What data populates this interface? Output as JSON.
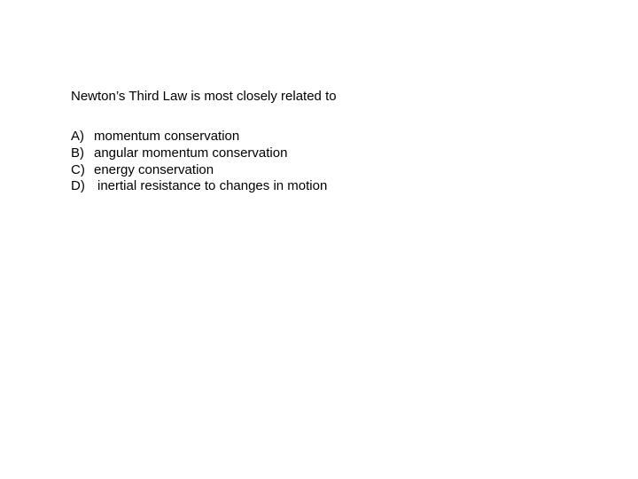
{
  "question": "Newton’s Third Law is most closely related to",
  "options": [
    {
      "letter": "A)",
      "text": "momentum conservation",
      "extra_pad": false
    },
    {
      "letter": "B)",
      "text": "angular momentum conservation",
      "extra_pad": false
    },
    {
      "letter": "C)",
      "text": "energy conservation",
      "extra_pad": false
    },
    {
      "letter": "D)",
      "text": "inertial resistance to changes in motion",
      "extra_pad": true
    }
  ],
  "colors": {
    "background": "#ffffff",
    "text": "#000000"
  },
  "typography": {
    "font_family": "Arial",
    "font_size_pt": 11
  }
}
